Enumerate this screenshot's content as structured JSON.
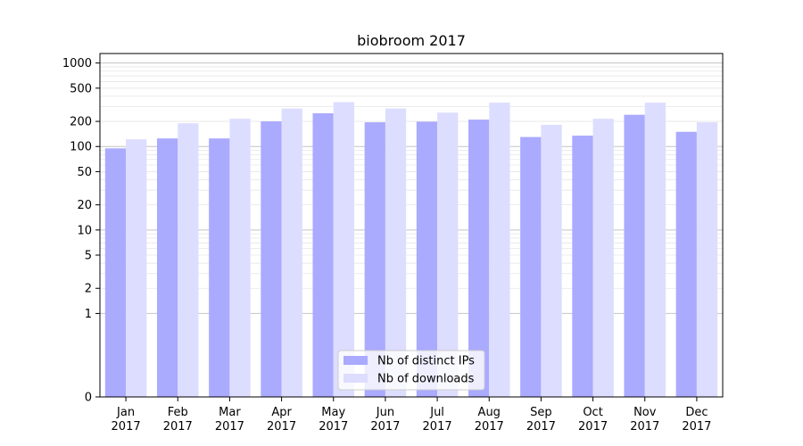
{
  "chart_data": {
    "type": "bar",
    "title": "biobroom 2017",
    "xlabel": "",
    "ylabel": "",
    "yscale": "symlog",
    "ylim": [
      0,
      1300
    ],
    "yticks": [
      0,
      1,
      2,
      5,
      10,
      20,
      50,
      100,
      200,
      500,
      1000
    ],
    "grid": "horizontal",
    "legend_position": "bottom-center",
    "categories": [
      "Jan\n2017",
      "Feb\n2017",
      "Mar\n2017",
      "Apr\n2017",
      "May\n2017",
      "Jun\n2017",
      "Jul\n2017",
      "Aug\n2017",
      "Sep\n2017",
      "Oct\n2017",
      "Nov\n2017",
      "Dec\n2017"
    ],
    "series": [
      {
        "name": "Nb of distinct IPs",
        "color": "#aaaaff",
        "values": [
          95,
          125,
          125,
          200,
          250,
          195,
          198,
          210,
          130,
          135,
          240,
          150
        ]
      },
      {
        "name": "Nb of downloads",
        "color": "#ddddff",
        "values": [
          122,
          190,
          215,
          285,
          340,
          285,
          255,
          335,
          182,
          215,
          335,
          195
        ]
      }
    ]
  }
}
